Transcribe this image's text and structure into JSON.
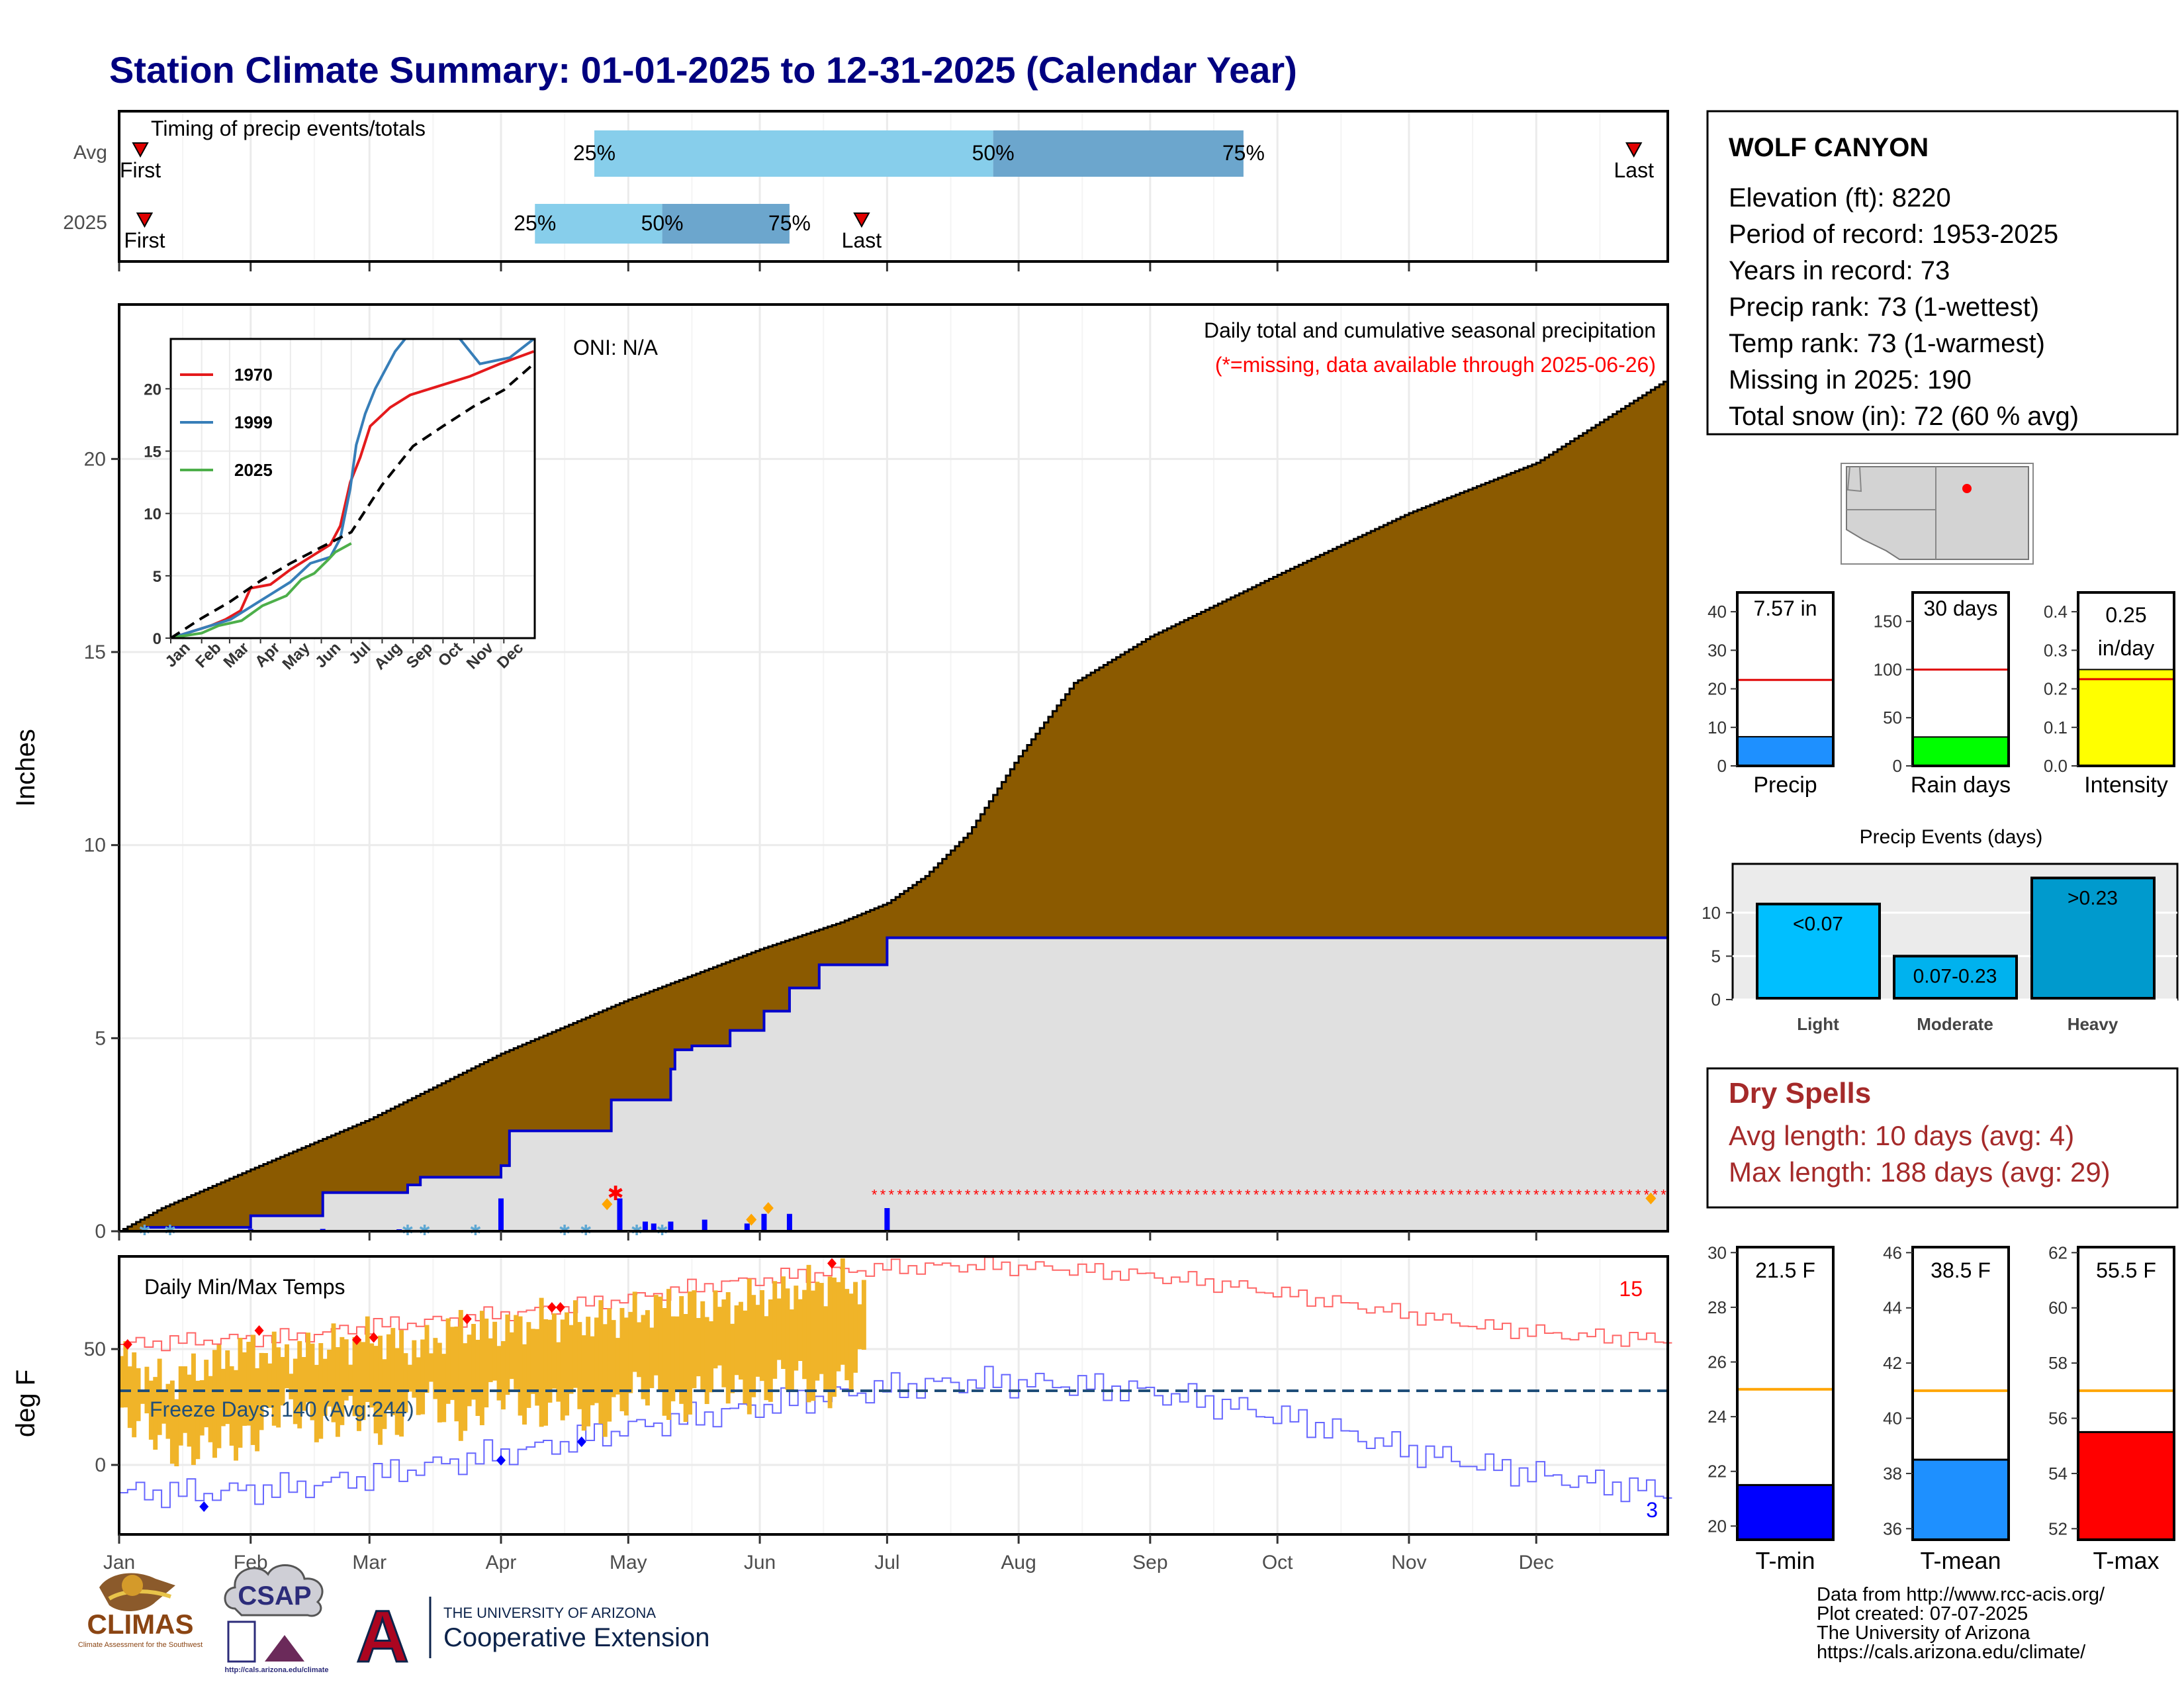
{
  "title": "Station Climate Summary: 01-01-2025 to 12-31-2025 (Calendar Year)",
  "station": {
    "name": "WOLF CANYON",
    "lines": [
      "Elevation (ft): 8220",
      "Period of record: 1953-2025",
      "Years in record: 73",
      "Precip rank: 73 (1-wettest)",
      "Temp rank: 73 (1-warmest)",
      "Missing in 2025: 190",
      "Total snow (in): 72 (60 % avg)"
    ]
  },
  "colors": {
    "title": "#000080",
    "cumulative_avg": "#8B5A00",
    "cumulative_2025": "#0000CD",
    "missing": "#FF0000",
    "temp_bar": "#F0B429",
    "tmax_line": "#FF6666",
    "tmin_line": "#6666FF",
    "freeze_line": "#1F4E79",
    "dry_spells": "#A52A2A",
    "q1": "#87CEEB",
    "q2": "#6CA6CD"
  },
  "month_labels": [
    "Jan",
    "Feb",
    "Mar",
    "Apr",
    "May",
    "Jun",
    "Jul",
    "Aug",
    "Sep",
    "Oct",
    "Nov",
    "Dec"
  ],
  "timing": {
    "title": "Timing of precip events/totals",
    "row_labels": [
      "Avg",
      "2025"
    ],
    "avg": {
      "first_day": 5,
      "q25": 112,
      "q50": 206,
      "q75": 265,
      "last_day": 357,
      "q_labels": [
        "25%",
        "50%",
        "75%"
      ],
      "first_label": "First",
      "last_label": "Last"
    },
    "y2025": {
      "first_day": 6,
      "q25": 98,
      "q50": 128,
      "q75": 158,
      "last_day": 175,
      "q_labels": [
        "25%",
        "50%",
        "75%"
      ],
      "first_label": "First",
      "last_label": "Last"
    }
  },
  "precip_panel": {
    "ylabel": "Inches",
    "yticks": [
      0,
      5,
      10,
      15,
      20
    ],
    "ylim": [
      0,
      24
    ],
    "oni": "ONI: N/A",
    "note1": "Daily total and cumulative seasonal precipitation",
    "note2": "(*=missing, data available through 2025-06-26)",
    "avg_cum": [
      [
        0,
        0
      ],
      [
        10,
        0.6
      ],
      [
        31,
        1.6
      ],
      [
        59,
        2.9
      ],
      [
        90,
        4.6
      ],
      [
        120,
        6.0
      ],
      [
        151,
        7.3
      ],
      [
        170,
        8.0
      ],
      [
        181,
        8.5
      ],
      [
        190,
        9.2
      ],
      [
        200,
        10.3
      ],
      [
        212,
        12.3
      ],
      [
        225,
        14.2
      ],
      [
        243,
        15.4
      ],
      [
        273,
        17.0
      ],
      [
        304,
        18.6
      ],
      [
        334,
        19.9
      ],
      [
        364,
        22.0
      ]
    ],
    "obs_cum": [
      [
        0,
        0
      ],
      [
        6,
        0.1
      ],
      [
        30,
        0.1
      ],
      [
        31,
        0.4
      ],
      [
        47,
        0.4
      ],
      [
        48,
        1.0
      ],
      [
        66,
        1.0
      ],
      [
        67,
        1.0
      ],
      [
        68,
        1.2
      ],
      [
        70,
        1.2
      ],
      [
        71,
        1.4
      ],
      [
        90,
        1.7
      ],
      [
        92,
        2.6
      ],
      [
        115,
        2.6
      ],
      [
        116,
        3.4
      ],
      [
        129,
        3.4
      ],
      [
        130,
        4.2
      ],
      [
        131,
        4.7
      ],
      [
        134,
        4.7
      ],
      [
        135,
        4.8
      ],
      [
        143,
        4.8
      ],
      [
        144,
        5.2
      ],
      [
        151,
        5.2
      ],
      [
        152,
        5.7
      ],
      [
        157,
        5.7
      ],
      [
        158,
        6.3
      ],
      [
        164,
        6.3
      ],
      [
        165,
        6.9
      ],
      [
        180,
        6.9
      ],
      [
        181,
        7.6
      ],
      [
        364,
        7.6
      ]
    ],
    "daily": [
      [
        31,
        0.06
      ],
      [
        48,
        0.06
      ],
      [
        66,
        0.05
      ],
      [
        90,
        0.85
      ],
      [
        118,
        0.85
      ],
      [
        124,
        0.25
      ],
      [
        126,
        0.2
      ],
      [
        130,
        0.25
      ],
      [
        138,
        0.3
      ],
      [
        148,
        0.2
      ],
      [
        152,
        0.45
      ],
      [
        158,
        0.45
      ],
      [
        181,
        0.6
      ]
    ],
    "missing_start_day": 178,
    "missing_end_day": 364,
    "missing_level": 0.95,
    "sparse_missing": [
      [
        117,
        0.98
      ]
    ],
    "orange_marks": [
      [
        115,
        0.7
      ],
      [
        149,
        0.3
      ],
      [
        153,
        0.6
      ],
      [
        361,
        0.85
      ]
    ],
    "snow_marks": [
      6,
      12,
      68,
      72,
      84,
      105,
      110,
      122,
      128
    ]
  },
  "inset": {
    "series": [
      {
        "name": "1970",
        "color": "#E41A1C",
        "points": [
          [
            0,
            0
          ],
          [
            20,
            0.5
          ],
          [
            40,
            1.0
          ],
          [
            55,
            1.5
          ],
          [
            70,
            2.2
          ],
          [
            80,
            4.0
          ],
          [
            100,
            4.3
          ],
          [
            120,
            5.5
          ],
          [
            140,
            6.5
          ],
          [
            160,
            7.5
          ],
          [
            170,
            9.0
          ],
          [
            180,
            12.5
          ],
          [
            190,
            14.5
          ],
          [
            200,
            17.0
          ],
          [
            220,
            18.5
          ],
          [
            240,
            19.5
          ],
          [
            260,
            20.0
          ],
          [
            280,
            20.5
          ],
          [
            300,
            21.0
          ],
          [
            330,
            22.0
          ],
          [
            364,
            23.0
          ]
        ]
      },
      {
        "name": "1999",
        "color": "#377EB8",
        "points": [
          [
            0,
            0
          ],
          [
            20,
            0.5
          ],
          [
            40,
            1.0
          ],
          [
            60,
            1.5
          ],
          [
            80,
            2.5
          ],
          [
            100,
            3.5
          ],
          [
            120,
            4.5
          ],
          [
            140,
            6.0
          ],
          [
            160,
            6.5
          ],
          [
            170,
            8.0
          ],
          [
            180,
            12.0
          ],
          [
            186,
            15.5
          ],
          [
            195,
            18.0
          ],
          [
            205,
            20.0
          ],
          [
            215,
            21.5
          ],
          [
            225,
            23.0
          ],
          [
            240,
            24.5
          ],
          [
            280,
            25.0
          ],
          [
            310,
            22.0
          ],
          [
            340,
            22.5
          ],
          [
            364,
            24.0
          ]
        ]
      },
      {
        "name": "2025",
        "color": "#4DAF4A",
        "points": [
          [
            0,
            0
          ],
          [
            6,
            0.1
          ],
          [
            31,
            0.4
          ],
          [
            48,
            1.0
          ],
          [
            71,
            1.4
          ],
          [
            92,
            2.6
          ],
          [
            116,
            3.4
          ],
          [
            131,
            4.7
          ],
          [
            144,
            5.2
          ],
          [
            158,
            6.3
          ],
          [
            165,
            6.9
          ],
          [
            181,
            7.6
          ]
        ]
      }
    ],
    "avg": [
      [
        0,
        0
      ],
      [
        31,
        1.6
      ],
      [
        59,
        2.9
      ],
      [
        90,
        4.6
      ],
      [
        120,
        6.0
      ],
      [
        151,
        7.3
      ],
      [
        181,
        8.5
      ],
      [
        212,
        12.3
      ],
      [
        243,
        15.4
      ],
      [
        273,
        17.0
      ],
      [
        304,
        18.6
      ],
      [
        334,
        19.9
      ],
      [
        364,
        22.0
      ]
    ],
    "yticks": [
      0,
      5,
      10,
      15,
      20
    ],
    "ylim": [
      0,
      24
    ]
  },
  "temp_panel": {
    "ylabel": "deg F",
    "title": "Daily Min/Max Temps",
    "yticks": [
      0,
      50
    ],
    "ylim": [
      -30,
      90
    ],
    "freeze_level": 32,
    "freeze_text": "Freeze Days: 140 (Avg:244)",
    "count_high": "15",
    "count_low": "3",
    "tmax_avg": [
      [
        0,
        52
      ],
      [
        20,
        54
      ],
      [
        40,
        55
      ],
      [
        59,
        60
      ],
      [
        80,
        63
      ],
      [
        100,
        67
      ],
      [
        120,
        72
      ],
      [
        140,
        78
      ],
      [
        160,
        82
      ],
      [
        180,
        85
      ],
      [
        200,
        86
      ],
      [
        220,
        85
      ],
      [
        240,
        82
      ],
      [
        260,
        78
      ],
      [
        280,
        72
      ],
      [
        300,
        66
      ],
      [
        320,
        60
      ],
      [
        340,
        56
      ],
      [
        364,
        54
      ]
    ],
    "tmin_avg": [
      [
        0,
        -12
      ],
      [
        20,
        -12
      ],
      [
        40,
        -10
      ],
      [
        59,
        -5
      ],
      [
        80,
        2
      ],
      [
        100,
        8
      ],
      [
        120,
        16
      ],
      [
        140,
        22
      ],
      [
        160,
        28
      ],
      [
        180,
        33
      ],
      [
        200,
        36
      ],
      [
        220,
        35
      ],
      [
        240,
        32
      ],
      [
        260,
        26
      ],
      [
        280,
        18
      ],
      [
        300,
        8
      ],
      [
        320,
        0
      ],
      [
        340,
        -6
      ],
      [
        364,
        -12
      ]
    ],
    "obs_max": [
      [
        0,
        47
      ],
      [
        10,
        35
      ],
      [
        20,
        43
      ],
      [
        30,
        50
      ],
      [
        40,
        48
      ],
      [
        50,
        52
      ],
      [
        60,
        55
      ],
      [
        70,
        50
      ],
      [
        80,
        60
      ],
      [
        90,
        58
      ],
      [
        100,
        63
      ],
      [
        110,
        62
      ],
      [
        120,
        65
      ],
      [
        130,
        70
      ],
      [
        140,
        68
      ],
      [
        150,
        72
      ],
      [
        160,
        76
      ],
      [
        170,
        80
      ],
      [
        175,
        76
      ]
    ],
    "obs_min": [
      [
        0,
        18
      ],
      [
        10,
        12
      ],
      [
        20,
        5
      ],
      [
        30,
        15
      ],
      [
        40,
        22
      ],
      [
        50,
        20
      ],
      [
        60,
        18
      ],
      [
        70,
        25
      ],
      [
        80,
        22
      ],
      [
        90,
        28
      ],
      [
        100,
        26
      ],
      [
        110,
        20
      ],
      [
        120,
        30
      ],
      [
        130,
        28
      ],
      [
        140,
        32
      ],
      [
        150,
        34
      ],
      [
        160,
        35
      ],
      [
        170,
        36
      ],
      [
        175,
        40
      ]
    ],
    "record_high": [
      [
        2,
        52
      ],
      [
        33,
        58
      ],
      [
        56,
        54
      ],
      [
        60,
        55
      ],
      [
        82,
        63
      ],
      [
        102,
        68
      ],
      [
        104,
        68
      ],
      [
        168,
        87
      ]
    ],
    "record_low": [
      [
        20,
        -18
      ],
      [
        90,
        2
      ],
      [
        109,
        10
      ]
    ]
  },
  "precip_bars": {
    "panels": [
      {
        "name": "precip",
        "value_label": "7.57 in",
        "value": 7.57,
        "avg": 22.3,
        "ylim": [
          0,
          45
        ],
        "yticks": [
          0,
          10,
          20,
          30,
          40
        ],
        "fill": "#1E90FF",
        "xlabel": "Precip"
      },
      {
        "name": "rain-days",
        "value_label": "30 days",
        "value": 30,
        "avg": 100,
        "ylim": [
          0,
          180
        ],
        "yticks": [
          0,
          50,
          100,
          150
        ],
        "fill": "#00FF00",
        "xlabel": "Rain days"
      },
      {
        "name": "intensity",
        "value_label1": "0.25",
        "value_label2": "in/day",
        "value": 0.25,
        "avg": 0.225,
        "ylim": [
          0,
          0.45
        ],
        "yticks": [
          "0.0",
          "0.1",
          "0.2",
          "0.3",
          "0.4"
        ],
        "fill": "#FFFF00",
        "xlabel": "Intensity"
      }
    ]
  },
  "events": {
    "title": "Precip Events (days)",
    "bars": [
      {
        "name": "light",
        "label": "<0.07",
        "value": 11,
        "xlabel": "Light",
        "fill": "#00BFFF"
      },
      {
        "name": "moderate",
        "label": "0.07-0.23",
        "value": 5,
        "xlabel": "Moderate",
        "fill": "#00B2EE"
      },
      {
        "name": "heavy",
        "label": ">0.23",
        "value": 14,
        "xlabel": "Heavy",
        "fill": "#009ACD"
      }
    ],
    "yticks": [
      0,
      5,
      10
    ],
    "ylim": [
      0,
      15
    ]
  },
  "dry_spells": {
    "title": "Dry Spells",
    "avg_line": "Avg length: 10 days (avg: 4)",
    "max_line": "Max length: 188 days (avg: 29)"
  },
  "temp_bars": {
    "panels": [
      {
        "name": "tmin",
        "value_label": "21.5 F",
        "value": 21.5,
        "avg": 25.0,
        "ylim": [
          19.5,
          30.2
        ],
        "yticks": [
          20,
          22,
          24,
          26,
          28,
          30
        ],
        "fill": "#0000FF",
        "xlabel": "T-min"
      },
      {
        "name": "tmean",
        "value_label": "38.5 F",
        "value": 38.5,
        "avg": 41.0,
        "ylim": [
          35.6,
          46.2
        ],
        "yticks": [
          36,
          38,
          40,
          42,
          44,
          46
        ],
        "fill": "#1E90FF",
        "xlabel": "T-mean"
      },
      {
        "name": "tmax",
        "value_label": "55.5 F",
        "value": 55.5,
        "avg": 57.0,
        "ylim": [
          51.6,
          62.2
        ],
        "yticks": [
          52,
          54,
          56,
          58,
          60,
          62
        ],
        "fill": "#FF0000",
        "xlabel": "T-max"
      }
    ]
  },
  "footer": {
    "lines": [
      "Data from http://www.rcc-acis.org/",
      "Plot created: 07-07-2025",
      "The University of Arizona",
      "https://cals.arizona.edu/climate/"
    ],
    "climas": "CLIMAS",
    "climas_sub": "Climate Assessment for the Southwest",
    "csap": "CSAP",
    "csap_url": "http://cals.arizona.edu/climate",
    "ua_top": "THE UNIVERSITY OF ARIZONA",
    "ua_bottom": "Cooperative Extension",
    "ua_letter": "A"
  }
}
